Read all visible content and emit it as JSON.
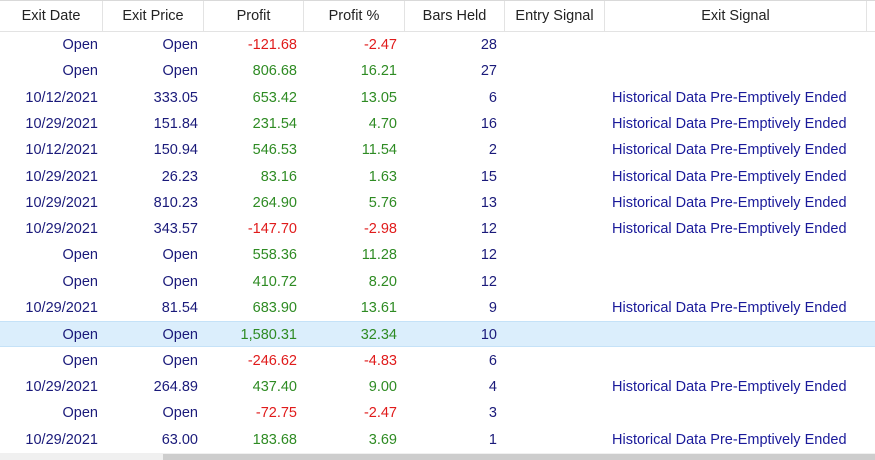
{
  "columns": [
    "Exit Date",
    "Exit Price",
    "Profit",
    "Profit %",
    "Bars Held",
    "Entry Signal",
    "Exit Signal"
  ],
  "rows": [
    {
      "exit_date": "Open",
      "exit_price": "Open",
      "profit": "-121.68",
      "profit_pct": "-2.47",
      "bars_held": "28",
      "entry_signal": "",
      "exit_signal": "",
      "sign": "neg"
    },
    {
      "exit_date": "Open",
      "exit_price": "Open",
      "profit": "806.68",
      "profit_pct": "16.21",
      "bars_held": "27",
      "entry_signal": "",
      "exit_signal": "",
      "sign": "pos"
    },
    {
      "exit_date": "10/12/2021",
      "exit_price": "333.05",
      "profit": "653.42",
      "profit_pct": "13.05",
      "bars_held": "6",
      "entry_signal": "",
      "exit_signal": "Historical Data Pre-Emptively Ended",
      "sign": "pos"
    },
    {
      "exit_date": "10/29/2021",
      "exit_price": "151.84",
      "profit": "231.54",
      "profit_pct": "4.70",
      "bars_held": "16",
      "entry_signal": "",
      "exit_signal": "Historical Data Pre-Emptively Ended",
      "sign": "pos"
    },
    {
      "exit_date": "10/12/2021",
      "exit_price": "150.94",
      "profit": "546.53",
      "profit_pct": "11.54",
      "bars_held": "2",
      "entry_signal": "",
      "exit_signal": "Historical Data Pre-Emptively Ended",
      "sign": "pos"
    },
    {
      "exit_date": "10/29/2021",
      "exit_price": "26.23",
      "profit": "83.16",
      "profit_pct": "1.63",
      "bars_held": "15",
      "entry_signal": "",
      "exit_signal": "Historical Data Pre-Emptively Ended",
      "sign": "pos"
    },
    {
      "exit_date": "10/29/2021",
      "exit_price": "810.23",
      "profit": "264.90",
      "profit_pct": "5.76",
      "bars_held": "13",
      "entry_signal": "",
      "exit_signal": "Historical Data Pre-Emptively Ended",
      "sign": "pos"
    },
    {
      "exit_date": "10/29/2021",
      "exit_price": "343.57",
      "profit": "-147.70",
      "profit_pct": "-2.98",
      "bars_held": "12",
      "entry_signal": "",
      "exit_signal": "Historical Data Pre-Emptively Ended",
      "sign": "neg"
    },
    {
      "exit_date": "Open",
      "exit_price": "Open",
      "profit": "558.36",
      "profit_pct": "11.28",
      "bars_held": "12",
      "entry_signal": "",
      "exit_signal": "",
      "sign": "pos"
    },
    {
      "exit_date": "Open",
      "exit_price": "Open",
      "profit": "410.72",
      "profit_pct": "8.20",
      "bars_held": "12",
      "entry_signal": "",
      "exit_signal": "",
      "sign": "pos"
    },
    {
      "exit_date": "10/29/2021",
      "exit_price": "81.54",
      "profit": "683.90",
      "profit_pct": "13.61",
      "bars_held": "9",
      "entry_signal": "",
      "exit_signal": "Historical Data Pre-Emptively Ended",
      "sign": "pos"
    },
    {
      "exit_date": "Open",
      "exit_price": "Open",
      "profit": "1,580.31",
      "profit_pct": "32.34",
      "bars_held": "10",
      "entry_signal": "",
      "exit_signal": "",
      "sign": "pos",
      "selected": true
    },
    {
      "exit_date": "Open",
      "exit_price": "Open",
      "profit": "-246.62",
      "profit_pct": "-4.83",
      "bars_held": "6",
      "entry_signal": "",
      "exit_signal": "",
      "sign": "neg"
    },
    {
      "exit_date": "10/29/2021",
      "exit_price": "264.89",
      "profit": "437.40",
      "profit_pct": "9.00",
      "bars_held": "4",
      "entry_signal": "",
      "exit_signal": "Historical Data Pre-Emptively Ended",
      "sign": "pos"
    },
    {
      "exit_date": "Open",
      "exit_price": "Open",
      "profit": "-72.75",
      "profit_pct": "-2.47",
      "bars_held": "3",
      "entry_signal": "",
      "exit_signal": "",
      "sign": "neg"
    },
    {
      "exit_date": "10/29/2021",
      "exit_price": "63.00",
      "profit": "183.68",
      "profit_pct": "3.69",
      "bars_held": "1",
      "entry_signal": "",
      "exit_signal": "Historical Data Pre-Emptively Ended",
      "sign": "pos"
    }
  ],
  "colors": {
    "positive": "#2e8b23",
    "negative": "#e01b1b",
    "text": "#1a1a7a",
    "selected_row": "#dbeefc"
  }
}
